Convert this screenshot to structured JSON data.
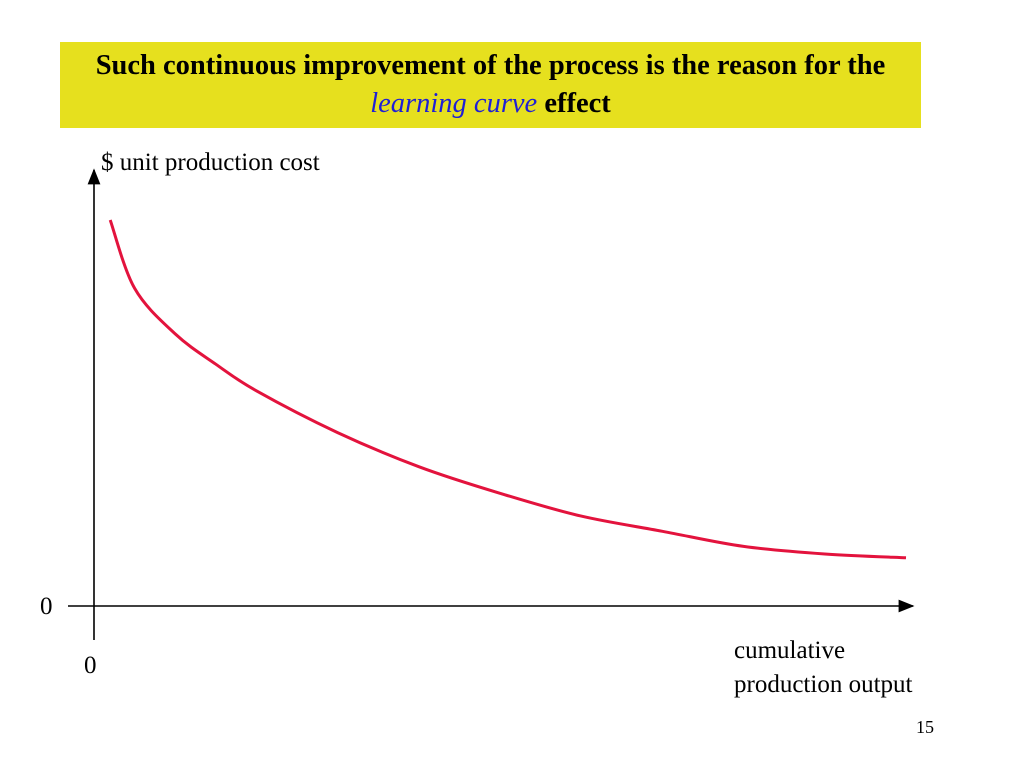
{
  "slide": {
    "title_before": "Such continuous improvement of the process is the reason for the ",
    "title_highlight": "learning curve",
    "title_after": " effect",
    "page_number": "15",
    "colors": {
      "title_bg": "#e6e01e",
      "highlight": "#1f1fd6",
      "curve": "#e3133d"
    }
  },
  "chart_data": {
    "type": "line",
    "title": "",
    "ylabel": "$ unit production cost",
    "xlabel_lines": [
      "cumulative",
      "production output"
    ],
    "y_origin_label": "0",
    "x_origin_label": "0",
    "grid": false,
    "legend": "none",
    "note": "conceptual curve, axes have no numeric scale",
    "series": [
      {
        "shape": "decreasing convex curve approaching a floor",
        "x": [
          0.02,
          0.05,
          0.1,
          0.15,
          0.2,
          0.3,
          0.4,
          0.5,
          0.6,
          0.7,
          0.8,
          0.9,
          1.0
        ],
        "y": [
          0.98,
          0.8,
          0.68,
          0.6,
          0.53,
          0.42,
          0.33,
          0.26,
          0.2,
          0.16,
          0.12,
          0.1,
          0.09
        ]
      }
    ]
  }
}
